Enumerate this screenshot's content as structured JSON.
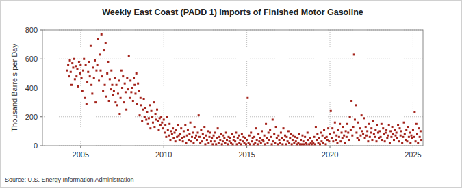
{
  "chart_data": {
    "type": "scatter",
    "title": "Weekly East Coast (PADD 1) Imports of Finished Motor Gasoline",
    "y_label": "Thousand Barrels per Day",
    "source": "Source: U.S. Energy Information Administration",
    "color": "#a4241c",
    "marker": "square",
    "grid": true,
    "xlim": [
      2002.7,
      2025.6
    ],
    "xticks": [
      2005,
      2010,
      2015,
      2020,
      2025
    ],
    "ylim": [
      0,
      800
    ],
    "yticks": [
      0,
      200,
      400,
      600,
      800
    ],
    "x": [
      2004.2,
      2004.25,
      2004.3,
      2004.35,
      2004.4,
      2004.45,
      2004.5,
      2004.55,
      2004.6,
      2004.65,
      2004.7,
      2004.75,
      2004.8,
      2004.85,
      2004.9,
      2004.95,
      2005,
      2005.05,
      2005.1,
      2005.15,
      2005.2,
      2005.25,
      2005.3,
      2005.35,
      2005.4,
      2005.45,
      2005.5,
      2005.55,
      2005.6,
      2005.65,
      2005.7,
      2005.75,
      2005.8,
      2005.85,
      2005.9,
      2005.95,
      2006,
      2006.05,
      2006.1,
      2006.15,
      2006.2,
      2006.25,
      2006.3,
      2006.35,
      2006.4,
      2006.45,
      2006.5,
      2006.55,
      2006.6,
      2006.65,
      2006.7,
      2006.75,
      2006.8,
      2006.85,
      2006.9,
      2006.95,
      2007,
      2007.05,
      2007.1,
      2007.15,
      2007.2,
      2007.25,
      2007.3,
      2007.35,
      2007.4,
      2007.45,
      2007.5,
      2007.55,
      2007.6,
      2007.65,
      2007.7,
      2007.75,
      2007.8,
      2007.85,
      2007.9,
      2007.95,
      2008,
      2008.05,
      2008.1,
      2008.15,
      2008.2,
      2008.25,
      2008.3,
      2008.35,
      2008.4,
      2008.45,
      2008.5,
      2008.55,
      2008.6,
      2008.65,
      2008.7,
      2008.75,
      2008.8,
      2008.85,
      2008.9,
      2008.95,
      2009,
      2009.05,
      2009.1,
      2009.15,
      2009.2,
      2009.25,
      2009.3,
      2009.35,
      2009.4,
      2009.45,
      2009.5,
      2009.55,
      2009.6,
      2009.65,
      2009.7,
      2009.75,
      2009.8,
      2009.85,
      2009.9,
      2009.95,
      2010,
      2010.05,
      2010.1,
      2010.15,
      2010.2,
      2010.25,
      2010.3,
      2010.35,
      2010.4,
      2010.45,
      2010.5,
      2010.55,
      2010.6,
      2010.65,
      2010.7,
      2010.75,
      2010.8,
      2010.85,
      2010.9,
      2010.95,
      2011,
      2011.05,
      2011.1,
      2011.15,
      2011.2,
      2011.25,
      2011.3,
      2011.35,
      2011.4,
      2011.45,
      2011.5,
      2011.55,
      2011.6,
      2011.65,
      2011.7,
      2011.75,
      2011.8,
      2011.85,
      2011.9,
      2011.95,
      2012,
      2012.05,
      2012.1,
      2012.15,
      2012.2,
      2012.25,
      2012.3,
      2012.35,
      2012.4,
      2012.45,
      2012.5,
      2012.55,
      2012.6,
      2012.65,
      2012.7,
      2012.75,
      2012.8,
      2012.85,
      2012.9,
      2012.95,
      2013,
      2013.05,
      2013.1,
      2013.15,
      2013.2,
      2013.25,
      2013.3,
      2013.35,
      2013.4,
      2013.45,
      2013.5,
      2013.55,
      2013.6,
      2013.65,
      2013.7,
      2013.75,
      2013.8,
      2013.85,
      2013.9,
      2013.95,
      2014,
      2014.05,
      2014.1,
      2014.15,
      2014.2,
      2014.25,
      2014.3,
      2014.35,
      2014.4,
      2014.45,
      2014.5,
      2014.55,
      2014.6,
      2014.65,
      2014.7,
      2014.75,
      2014.8,
      2014.85,
      2014.9,
      2014.95,
      2015,
      2015.05,
      2015.1,
      2015.15,
      2015.2,
      2015.25,
      2015.3,
      2015.35,
      2015.4,
      2015.45,
      2015.5,
      2015.55,
      2015.6,
      2015.65,
      2015.7,
      2015.75,
      2015.8,
      2015.85,
      2015.9,
      2015.95,
      2016,
      2016.05,
      2016.1,
      2016.15,
      2016.2,
      2016.25,
      2016.3,
      2016.35,
      2016.4,
      2016.45,
      2016.5,
      2016.55,
      2016.6,
      2016.65,
      2016.7,
      2016.75,
      2016.8,
      2016.85,
      2016.9,
      2016.95,
      2017,
      2017.05,
      2017.1,
      2017.15,
      2017.2,
      2017.25,
      2017.3,
      2017.35,
      2017.4,
      2017.45,
      2017.5,
      2017.55,
      2017.6,
      2017.65,
      2017.7,
      2017.75,
      2017.8,
      2017.85,
      2017.9,
      2017.95,
      2018,
      2018.05,
      2018.1,
      2018.15,
      2018.2,
      2018.25,
      2018.3,
      2018.35,
      2018.4,
      2018.45,
      2018.5,
      2018.55,
      2018.6,
      2018.65,
      2018.7,
      2018.75,
      2018.8,
      2018.85,
      2018.9,
      2018.95,
      2019,
      2019.05,
      2019.1,
      2019.15,
      2019.2,
      2019.25,
      2019.3,
      2019.35,
      2019.4,
      2019.45,
      2019.5,
      2019.55,
      2019.6,
      2019.65,
      2019.7,
      2019.75,
      2019.8,
      2019.85,
      2019.9,
      2019.95,
      2020,
      2020.05,
      2020.1,
      2020.15,
      2020.2,
      2020.25,
      2020.3,
      2020.35,
      2020.4,
      2020.45,
      2020.5,
      2020.55,
      2020.6,
      2020.65,
      2020.7,
      2020.75,
      2020.8,
      2020.85,
      2020.9,
      2020.95,
      2021,
      2021.05,
      2021.1,
      2021.15,
      2021.2,
      2021.25,
      2021.3,
      2021.35,
      2021.4,
      2021.45,
      2021.5,
      2021.55,
      2021.6,
      2021.65,
      2021.7,
      2021.75,
      2021.8,
      2021.85,
      2021.9,
      2021.95,
      2022,
      2022.05,
      2022.1,
      2022.15,
      2022.2,
      2022.25,
      2022.3,
      2022.35,
      2022.4,
      2022.45,
      2022.5,
      2022.55,
      2022.6,
      2022.65,
      2022.7,
      2022.75,
      2022.8,
      2022.85,
      2022.9,
      2022.95,
      2023,
      2023.05,
      2023.1,
      2023.15,
      2023.2,
      2023.25,
      2023.3,
      2023.35,
      2023.4,
      2023.45,
      2023.5,
      2023.55,
      2023.6,
      2023.65,
      2023.7,
      2023.75,
      2023.8,
      2023.85,
      2023.9,
      2023.95,
      2024,
      2024.05,
      2024.1,
      2024.15,
      2024.2,
      2024.25,
      2024.3,
      2024.35,
      2024.4,
      2024.45,
      2024.5,
      2024.55,
      2024.6,
      2024.65,
      2024.7,
      2024.75,
      2024.8,
      2024.85,
      2024.9,
      2024.95,
      2025,
      2025.05,
      2025.1,
      2025.15,
      2025.2,
      2025.25,
      2025.3,
      2025.35,
      2025.4,
      2025.45,
      2025.5
    ],
    "values": [
      520,
      560,
      480,
      590,
      510,
      420,
      570,
      540,
      600,
      460,
      550,
      480,
      530,
      410,
      580,
      500,
      560,
      470,
      380,
      520,
      600,
      330,
      560,
      290,
      440,
      510,
      580,
      480,
      690,
      420,
      360,
      540,
      470,
      590,
      300,
      520,
      560,
      740,
      450,
      630,
      520,
      770,
      480,
      380,
      660,
      420,
      710,
      340,
      500,
      580,
      310,
      460,
      390,
      520,
      420,
      350,
      380,
      470,
      300,
      420,
      280,
      360,
      450,
      220,
      330,
      520,
      400,
      480,
      300,
      430,
      370,
      250,
      470,
      390,
      620,
      330,
      450,
      370,
      400,
      310,
      470,
      420,
      360,
      500,
      290,
      430,
      380,
      210,
      330,
      280,
      170,
      250,
      320,
      200,
      260,
      180,
      230,
      150,
      190,
      280,
      120,
      240,
      200,
      160,
      300,
      130,
      220,
      180,
      250,
      170,
      110,
      190,
      140,
      200,
      160,
      120,
      180,
      90,
      140,
      60,
      200,
      110,
      70,
      150,
      40,
      100,
      80,
      120,
      50,
      90,
      30,
      110,
      60,
      140,
      70,
      40,
      80,
      120,
      50,
      30,
      100,
      60,
      140,
      20,
      70,
      110,
      40,
      80,
      160,
      30,
      60,
      90,
      20,
      130,
      50,
      70,
      40,
      90,
      210,
      60,
      20,
      110,
      30,
      80,
      50,
      130,
      10,
      70,
      40,
      100,
      20,
      60,
      90,
      30,
      50,
      10,
      70,
      30,
      90,
      10,
      50,
      120,
      20,
      60,
      40,
      80,
      10,
      30,
      70,
      50,
      20,
      90,
      40,
      10,
      60,
      30,
      50,
      20,
      80,
      10,
      40,
      60,
      30,
      90,
      10,
      50,
      70,
      20,
      40,
      10,
      80,
      30,
      60,
      20,
      50,
      10,
      40,
      330,
      20,
      70,
      10,
      90,
      30,
      50,
      10,
      60,
      20,
      120,
      40,
      10,
      80,
      30,
      50,
      20,
      100,
      40,
      30,
      70,
      10,
      150,
      50,
      20,
      90,
      40,
      110,
      60,
      10,
      180,
      30,
      80,
      20,
      130,
      50,
      10,
      70,
      40,
      20,
      90,
      50,
      10,
      120,
      40,
      70,
      10,
      60,
      30,
      100,
      20,
      50,
      80,
      10,
      40,
      70,
      20,
      60,
      30,
      10,
      50,
      20,
      80,
      10,
      40,
      10,
      70,
      30,
      10,
      60,
      20,
      10,
      90,
      40,
      10,
      50,
      20,
      10,
      30,
      20,
      60,
      10,
      130,
      40,
      80,
      20,
      50,
      10,
      90,
      30,
      70,
      20,
      110,
      50,
      10,
      60,
      40,
      120,
      30,
      80,
      240,
      50,
      120,
      30,
      90,
      160,
      40,
      70,
      20,
      110,
      60,
      150,
      30,
      90,
      50,
      130,
      70,
      20,
      100,
      60,
      150,
      90,
      40,
      200,
      110,
      310,
      70,
      130,
      630,
      180,
      280,
      90,
      50,
      160,
      40,
      120,
      70,
      210,
      100,
      80,
      190,
      50,
      130,
      70,
      100,
      30,
      150,
      60,
      90,
      120,
      40,
      170,
      80,
      60,
      110,
      30,
      140,
      90,
      50,
      100,
      60,
      150,
      40,
      120,
      80,
      30,
      90,
      110,
      50,
      70,
      140,
      20,
      100,
      60,
      130,
      80,
      40,
      110,
      70,
      90,
      50,
      140,
      30,
      120,
      70,
      100,
      20,
      60,
      160,
      80,
      40,
      110,
      30,
      130,
      60,
      90,
      20,
      70,
      50,
      110,
      60,
      230,
      30,
      150,
      80,
      20,
      120,
      60,
      100,
      40
    ]
  }
}
